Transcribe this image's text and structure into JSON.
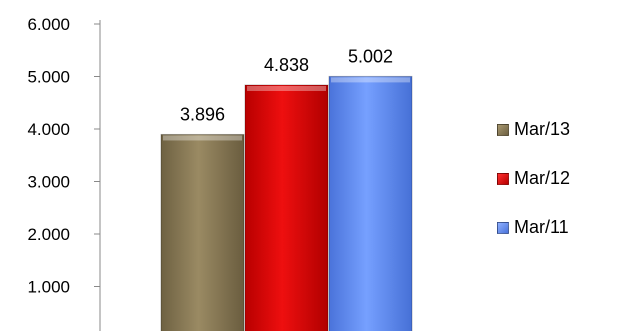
{
  "chart_data": {
    "type": "bar",
    "categories": [
      "Mar/13",
      "Mar/12",
      "Mar/11"
    ],
    "values": [
      3.896,
      4.838,
      5.002
    ],
    "value_labels": [
      "3.896",
      "4.838",
      "5.002"
    ],
    "ylim": [
      0,
      6
    ],
    "yticks": [
      1,
      2,
      3,
      4,
      5,
      6
    ],
    "ytick_labels": [
      "1.000",
      "2.000",
      "3.000",
      "4.000",
      "5.000",
      "6.000"
    ],
    "colors": [
      "#8b7b55",
      "#dd0000",
      "#5b86f0"
    ],
    "legend": {
      "position": "right",
      "entries": [
        "Mar/13",
        "Mar/12",
        "Mar/11"
      ]
    },
    "title": "",
    "xlabel": "",
    "ylabel": "",
    "grid": false
  }
}
